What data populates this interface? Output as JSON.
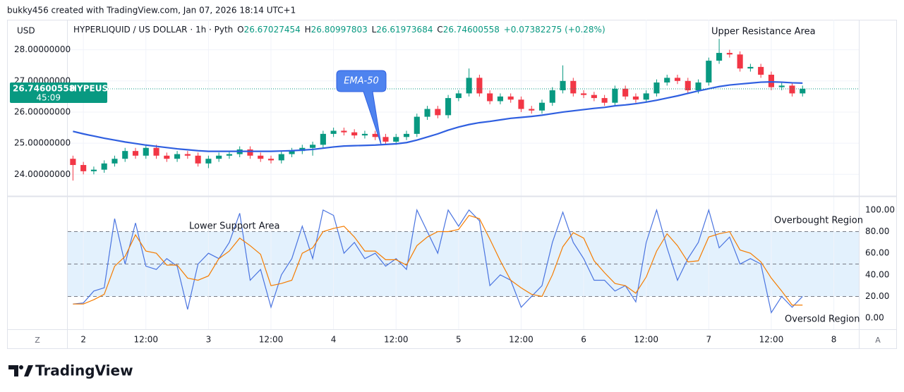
{
  "header": {
    "credit": "bukky456 created with TradingView.com, Jan 07, 2026 18:14 UTC+1",
    "brand": "TradingView"
  },
  "chart_data": [
    {
      "type": "candlestick",
      "currency": "USD",
      "legend": {
        "symbol": "HYPERLIQUID / US DOLLAR · 1h · Pyth",
        "open_label": "O",
        "open": 26.67027454,
        "high_label": "H",
        "high": 26.80997803,
        "low_label": "L",
        "low": 26.61973684,
        "close_label": "C",
        "close": 26.74600558,
        "change": "+0.07382275 (+0.28%)"
      },
      "symbol_tag": "HYPEUSD",
      "countdown": "45:09",
      "up_color": "#089981",
      "down_color": "#f23645",
      "xlim": [
        -3,
        148.8
      ],
      "ylim": [
        23.35,
        28.92
      ],
      "yticks": [
        {
          "value": 24,
          "label": "24.00000000"
        },
        {
          "value": 25,
          "label": "25.00000000"
        },
        {
          "value": 26,
          "label": "26.00000000"
        },
        {
          "value": 27,
          "label": "27.00000000"
        },
        {
          "value": 28,
          "label": "28.00000000"
        }
      ],
      "grid": true,
      "x": [
        -2,
        0,
        2,
        4,
        6,
        8,
        10,
        12,
        14,
        16,
        18,
        20,
        22,
        24,
        26,
        28,
        30,
        32,
        34,
        36,
        38,
        40,
        42,
        44,
        46,
        48,
        50,
        52,
        54,
        56,
        58,
        60,
        62,
        64,
        66,
        68,
        70,
        72,
        74,
        76,
        78,
        80,
        82,
        84,
        86,
        88,
        90,
        92,
        94,
        96,
        98,
        100,
        102,
        104,
        106,
        108,
        110,
        112,
        114,
        116,
        118,
        120,
        122,
        124,
        126,
        128,
        130,
        132,
        134,
        136,
        138
      ],
      "open": [
        24.5,
        24.3,
        24.1,
        24.15,
        24.35,
        24.5,
        24.75,
        24.6,
        24.85,
        24.6,
        24.5,
        24.65,
        24.6,
        24.35,
        24.5,
        24.6,
        24.65,
        24.8,
        24.6,
        24.5,
        24.45,
        24.65,
        24.75,
        24.85,
        24.95,
        25.3,
        25.4,
        25.35,
        25.25,
        25.3,
        25.2,
        25.05,
        25.2,
        25.3,
        25.85,
        26.1,
        25.9,
        26.45,
        26.6,
        27.1,
        26.6,
        26.35,
        26.5,
        26.4,
        26.1,
        26.05,
        26.3,
        26.7,
        27.0,
        26.6,
        26.55,
        26.45,
        26.3,
        26.75,
        26.5,
        26.4,
        26.6,
        26.95,
        27.1,
        27.0,
        26.7,
        26.95,
        27.65,
        27.9,
        27.85,
        27.4,
        27.45,
        27.2,
        26.8,
        26.85,
        26.6
      ],
      "high": [
        24.6,
        24.4,
        24.25,
        24.45,
        24.6,
        24.85,
        24.85,
        24.95,
        24.95,
        24.7,
        24.75,
        24.75,
        24.7,
        24.6,
        24.7,
        24.75,
        24.9,
        24.9,
        24.7,
        24.6,
        24.75,
        24.85,
        24.95,
        25.05,
        25.4,
        25.5,
        25.5,
        25.45,
        25.4,
        25.4,
        25.3,
        25.3,
        25.4,
        25.95,
        26.2,
        26.2,
        26.55,
        26.7,
        27.4,
        27.2,
        26.7,
        26.6,
        26.6,
        26.5,
        26.2,
        26.4,
        26.8,
        27.5,
        27.1,
        26.7,
        26.65,
        26.55,
        26.85,
        26.85,
        26.6,
        26.7,
        27.05,
        27.2,
        27.2,
        27.1,
        27.05,
        27.75,
        28.35,
        28.0,
        27.95,
        27.55,
        27.55,
        27.3,
        26.95,
        26.95,
        26.85
      ],
      "low": [
        23.8,
        24.0,
        24.0,
        24.05,
        24.25,
        24.4,
        24.5,
        24.5,
        24.5,
        24.4,
        24.4,
        24.5,
        24.25,
        24.2,
        24.4,
        24.5,
        24.55,
        24.5,
        24.4,
        24.35,
        24.35,
        24.55,
        24.65,
        24.6,
        24.85,
        25.2,
        25.25,
        25.15,
        25.15,
        25.1,
        24.95,
        24.95,
        25.1,
        25.2,
        25.75,
        25.8,
        25.8,
        26.35,
        26.5,
        26.5,
        26.25,
        26.25,
        26.3,
        26.0,
        25.95,
        25.95,
        26.2,
        26.6,
        26.5,
        26.45,
        26.35,
        26.2,
        26.2,
        26.4,
        26.3,
        26.3,
        26.5,
        26.85,
        26.9,
        26.6,
        26.6,
        26.85,
        27.55,
        27.75,
        27.3,
        27.3,
        27.1,
        26.7,
        26.7,
        26.5,
        26.5
      ],
      "close": [
        24.3,
        24.1,
        24.15,
        24.35,
        24.5,
        24.75,
        24.6,
        24.85,
        24.6,
        24.5,
        24.65,
        24.6,
        24.35,
        24.5,
        24.6,
        24.65,
        24.8,
        24.6,
        24.5,
        24.45,
        24.65,
        24.75,
        24.85,
        24.95,
        25.3,
        25.4,
        25.35,
        25.25,
        25.3,
        25.2,
        25.05,
        25.2,
        25.3,
        25.85,
        26.1,
        25.9,
        26.45,
        26.6,
        27.1,
        26.6,
        26.35,
        26.5,
        26.4,
        26.1,
        26.05,
        26.3,
        26.7,
        27.0,
        26.6,
        26.55,
        26.45,
        26.3,
        26.75,
        26.5,
        26.4,
        26.6,
        26.95,
        27.1,
        27.0,
        26.7,
        26.95,
        27.65,
        27.9,
        27.85,
        27.4,
        27.45,
        27.2,
        26.8,
        26.85,
        26.6,
        26.75
      ],
      "ema": {
        "color": "#2f5fe0",
        "values": [
          25.38,
          25.3,
          25.23,
          25.16,
          25.1,
          25.04,
          24.99,
          24.94,
          24.9,
          24.86,
          24.82,
          24.79,
          24.76,
          24.74,
          24.74,
          24.74,
          24.74,
          24.74,
          24.74,
          24.74,
          24.75,
          24.76,
          24.78,
          24.8,
          24.84,
          24.88,
          24.91,
          24.92,
          24.93,
          24.94,
          24.96,
          24.98,
          25.02,
          25.1,
          25.2,
          25.3,
          25.42,
          25.52,
          25.6,
          25.66,
          25.7,
          25.75,
          25.8,
          25.83,
          25.86,
          25.9,
          25.95,
          26.0,
          26.04,
          26.08,
          26.12,
          26.15,
          26.2,
          26.23,
          26.27,
          26.32,
          26.38,
          26.45,
          26.52,
          26.6,
          26.68,
          26.75,
          26.82,
          26.87,
          26.9,
          26.93,
          26.96,
          26.97,
          26.96,
          26.94,
          26.93
        ]
      },
      "annotations": [
        "EMA-50",
        "Upper Resistance Area"
      ]
    },
    {
      "type": "line",
      "xlim": [
        -3,
        148.8
      ],
      "xticks": [
        {
          "value": 0,
          "label": "2"
        },
        {
          "value": 12,
          "label": "12:00"
        },
        {
          "value": 24,
          "label": "3"
        },
        {
          "value": 36,
          "label": "12:00"
        },
        {
          "value": 48,
          "label": "4"
        },
        {
          "value": 60,
          "label": "12:00"
        },
        {
          "value": 72,
          "label": "5"
        },
        {
          "value": 84,
          "label": "12:00"
        },
        {
          "value": 96,
          "label": "6"
        },
        {
          "value": 108,
          "label": "12:00"
        },
        {
          "value": 120,
          "label": "7"
        },
        {
          "value": 132,
          "label": "12:00"
        },
        {
          "value": 144,
          "label": "8"
        }
      ],
      "ylim": [
        -9.7,
        111
      ],
      "yticks": [
        {
          "value": 0,
          "label": "0.00"
        },
        {
          "value": 20,
          "label": "20.00"
        },
        {
          "value": 40,
          "label": "40.00"
        },
        {
          "value": 60,
          "label": "60.00"
        },
        {
          "value": 80,
          "label": "80.00"
        },
        {
          "value": 100,
          "label": "100.00"
        }
      ],
      "levels": [
        80,
        50,
        20
      ],
      "band_color": "#e3f1fd",
      "x": [
        -2,
        0,
        2,
        4,
        6,
        8,
        10,
        12,
        14,
        16,
        18,
        20,
        22,
        24,
        26,
        28,
        30,
        32,
        34,
        36,
        38,
        40,
        42,
        44,
        46,
        48,
        50,
        52,
        54,
        56,
        58,
        60,
        62,
        64,
        66,
        68,
        70,
        72,
        74,
        76,
        78,
        80,
        82,
        84,
        86,
        88,
        90,
        92,
        94,
        96,
        98,
        100,
        102,
        104,
        106,
        108,
        110,
        112,
        114,
        116,
        118,
        120,
        122,
        124,
        126,
        128,
        130,
        132,
        134,
        136,
        138
      ],
      "series": [
        {
          "color": "#4a74e0",
          "values": [
            13,
            14,
            25,
            28,
            92,
            50,
            88,
            48,
            45,
            55,
            48,
            8,
            50,
            60,
            55,
            70,
            97,
            35,
            45,
            10,
            40,
            55,
            85,
            55,
            100,
            95,
            60,
            70,
            55,
            60,
            48,
            55,
            45,
            100,
            80,
            60,
            100,
            85,
            100,
            90,
            30,
            40,
            35,
            10,
            20,
            30,
            70,
            98,
            70,
            55,
            35,
            35,
            25,
            30,
            15,
            70,
            100,
            65,
            35,
            55,
            70,
            100,
            65,
            75,
            50,
            55,
            50,
            5,
            20,
            10,
            20
          ]
        },
        {
          "color": "#f57c00",
          "values": [
            13,
            13,
            17,
            22,
            48,
            57,
            77,
            62,
            60,
            49,
            49,
            37,
            35,
            39,
            55,
            62,
            74,
            67,
            59,
            30,
            32,
            35,
            60,
            65,
            80,
            83,
            85,
            75,
            62,
            62,
            54,
            54,
            49,
            67,
            75,
            80,
            80,
            82,
            95,
            92,
            73,
            53,
            35,
            28,
            22,
            20,
            40,
            66,
            79,
            74,
            53,
            42,
            32,
            30,
            23,
            38,
            62,
            78,
            67,
            52,
            53,
            75,
            78,
            80,
            63,
            60,
            52,
            37,
            25,
            12,
            12
          ]
        }
      ],
      "annotations": [
        "Lower Support Area",
        "Overbought Region",
        "Oversold Region"
      ],
      "corner_labels": [
        "Z",
        "A"
      ]
    }
  ]
}
